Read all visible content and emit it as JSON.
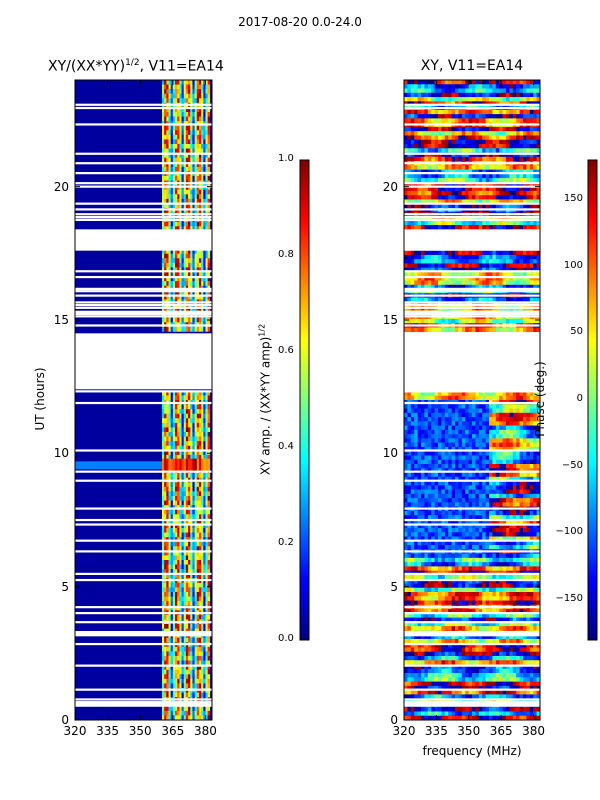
{
  "suptitle": "2017-08-20 0.0-24.0",
  "left_panel": {
    "title_prefix": "XY/(XX*YY)",
    "title_exponent": "1/2",
    "title_suffix": ", V11=EA14",
    "ylabel": "UT (hours)"
  },
  "right_panel": {
    "title": "XY, V11=EA14"
  },
  "xlabel": "frequency (MHz)",
  "colorbar_amp": {
    "label_prefix": "XY amp. / (XX*YY amp)",
    "label_exponent": "1/2",
    "ticks": [
      "0.0",
      "0.2",
      "0.4",
      "0.6",
      "0.8",
      "1.0"
    ]
  },
  "colorbar_phase": {
    "label": "Phase (deg.)",
    "ticks": [
      "−150",
      "−100",
      "−50",
      "0",
      "50",
      "100",
      "150"
    ]
  },
  "chart_data": [
    {
      "type": "heatmap",
      "title": "XY/(XX*YY)^1/2, V11=EA14",
      "xlabel": "",
      "ylabel": "UT (hours)",
      "xlim": [
        320,
        383
      ],
      "ylim": [
        0,
        24
      ],
      "xticks": [
        320,
        335,
        350,
        365,
        380
      ],
      "xtick_labels": [
        "320",
        "335",
        "350",
        "365",
        "380"
      ],
      "yticks": [
        0,
        5,
        10,
        15,
        20
      ],
      "ytick_labels": [
        "0",
        "5",
        "10",
        "15",
        "20"
      ],
      "colormap": "jet",
      "clim": [
        0.0,
        1.0
      ],
      "data_gap_hours": [
        [
          12.4,
          14.5
        ],
        [
          17.6,
          18.4
        ]
      ],
      "high_amplitude_band_mhz": [
        360,
        382
      ]
    },
    {
      "type": "heatmap",
      "title": "XY, V11=EA14",
      "xlabel": "frequency (MHz)",
      "ylabel": "",
      "xlim": [
        320,
        383
      ],
      "ylim": [
        0,
        24
      ],
      "xticks": [
        320,
        335,
        350,
        365,
        380
      ],
      "xtick_labels": [
        "320",
        "335",
        "350",
        "365",
        "380"
      ],
      "yticks": [
        0,
        5,
        10,
        15,
        20
      ],
      "ytick_labels": [
        "0",
        "5",
        "10",
        "15",
        "20"
      ],
      "colormap": "jet",
      "clim": [
        -180,
        180
      ],
      "data_gap_hours": [
        [
          12.4,
          14.5
        ],
        [
          17.6,
          18.4
        ]
      ]
    }
  ]
}
